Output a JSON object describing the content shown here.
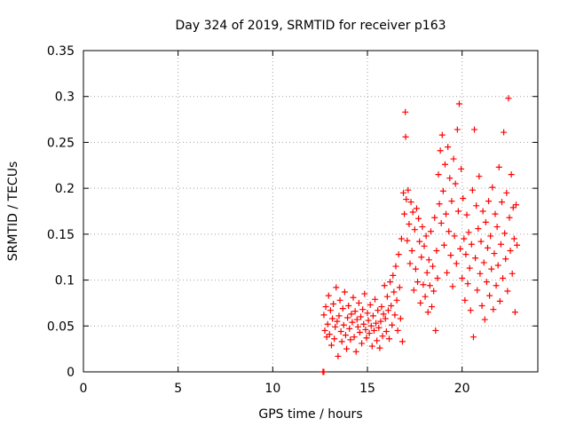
{
  "chart_data": {
    "type": "scatter",
    "title": "Day 324 of 2019, SRMTID for receiver p163",
    "xlabel": "GPS time / hours",
    "ylabel": "SRMTID / TECUs",
    "xlim": [
      0,
      24
    ],
    "ylim": [
      0,
      0.35
    ],
    "xticks": [
      0,
      5,
      10,
      15,
      20
    ],
    "yticks": [
      0,
      0.05,
      0.1,
      0.15,
      0.2,
      0.25,
      0.3,
      0.35
    ],
    "xtick_labels": [
      "0",
      "5",
      "10",
      "15",
      "20"
    ],
    "ytick_labels": [
      "0",
      "0.05",
      "0.1",
      "0.15",
      "0.2",
      "0.25",
      "0.3",
      "0.35"
    ],
    "grid": true,
    "marker": "+",
    "series_color": "#ff0000",
    "series": [
      {
        "name": "SRMTID",
        "points": [
          [
            12.65,
            0.0
          ],
          [
            12.7,
            0.0
          ],
          [
            12.7,
            0.062
          ],
          [
            12.75,
            0.045
          ],
          [
            12.8,
            0.071
          ],
          [
            12.85,
            0.038
          ],
          [
            12.9,
            0.052
          ],
          [
            12.95,
            0.083
          ],
          [
            13.0,
            0.041
          ],
          [
            13.05,
            0.067
          ],
          [
            13.1,
            0.029
          ],
          [
            13.15,
            0.058
          ],
          [
            13.2,
            0.074
          ],
          [
            13.25,
            0.036
          ],
          [
            13.3,
            0.049
          ],
          [
            13.35,
            0.092
          ],
          [
            13.4,
            0.055
          ],
          [
            13.45,
            0.017
          ],
          [
            13.5,
            0.061
          ],
          [
            13.55,
            0.078
          ],
          [
            13.6,
            0.044
          ],
          [
            13.65,
            0.033
          ],
          [
            13.7,
            0.069
          ],
          [
            13.75,
            0.051
          ],
          [
            13.8,
            0.087
          ],
          [
            13.85,
            0.04
          ],
          [
            13.9,
            0.025
          ],
          [
            13.95,
            0.059
          ],
          [
            14.0,
            0.072
          ],
          [
            14.05,
            0.047
          ],
          [
            14.1,
            0.035
          ],
          [
            14.15,
            0.063
          ],
          [
            14.2,
            0.054
          ],
          [
            14.25,
            0.081
          ],
          [
            14.3,
            0.038
          ],
          [
            14.35,
            0.066
          ],
          [
            14.4,
            0.022
          ],
          [
            14.45,
            0.057
          ],
          [
            14.5,
            0.049
          ],
          [
            14.55,
            0.075
          ],
          [
            14.6,
            0.043
          ],
          [
            14.65,
            0.06
          ],
          [
            14.7,
            0.031
          ],
          [
            14.75,
            0.068
          ],
          [
            14.8,
            0.052
          ],
          [
            14.85,
            0.085
          ],
          [
            14.9,
            0.046
          ],
          [
            14.95,
            0.037
          ],
          [
            15.0,
            0.064
          ],
          [
            15.05,
            0.056
          ],
          [
            15.1,
            0.042
          ],
          [
            15.15,
            0.073
          ],
          [
            15.2,
            0.05
          ],
          [
            15.25,
            0.028
          ],
          [
            15.3,
            0.061
          ],
          [
            15.35,
            0.045
          ],
          [
            15.4,
            0.079
          ],
          [
            15.45,
            0.053
          ],
          [
            15.5,
            0.034
          ],
          [
            15.55,
            0.067
          ],
          [
            15.6,
            0.048
          ],
          [
            15.65,
            0.026
          ],
          [
            15.7,
            0.055
          ],
          [
            15.75,
            0.071
          ],
          [
            15.8,
            0.039
          ],
          [
            15.85,
            0.063
          ],
          [
            15.9,
            0.094
          ],
          [
            15.95,
            0.058
          ],
          [
            16.0,
            0.044
          ],
          [
            16.05,
            0.082
          ],
          [
            16.1,
            0.067
          ],
          [
            16.15,
            0.036
          ],
          [
            16.2,
            0.098
          ],
          [
            16.25,
            0.072
          ],
          [
            16.3,
            0.051
          ],
          [
            16.35,
            0.105
          ],
          [
            16.4,
            0.087
          ],
          [
            16.45,
            0.062
          ],
          [
            16.5,
            0.115
          ],
          [
            16.55,
            0.078
          ],
          [
            16.6,
            0.045
          ],
          [
            16.65,
            0.128
          ],
          [
            16.7,
            0.092
          ],
          [
            16.75,
            0.058
          ],
          [
            16.8,
            0.145
          ],
          [
            16.85,
            0.033
          ],
          [
            16.9,
            0.195
          ],
          [
            16.95,
            0.172
          ],
          [
            17.0,
            0.283
          ],
          [
            17.02,
            0.256
          ],
          [
            17.05,
            0.188
          ],
          [
            17.1,
            0.143
          ],
          [
            17.15,
            0.198
          ],
          [
            17.2,
            0.161
          ],
          [
            17.25,
            0.118
          ],
          [
            17.3,
            0.185
          ],
          [
            17.35,
            0.132
          ],
          [
            17.4,
            0.174
          ],
          [
            17.45,
            0.089
          ],
          [
            17.5,
            0.155
          ],
          [
            17.55,
            0.112
          ],
          [
            17.6,
            0.178
          ],
          [
            17.65,
            0.098
          ],
          [
            17.7,
            0.167
          ],
          [
            17.75,
            0.142
          ],
          [
            17.8,
            0.075
          ],
          [
            17.85,
            0.125
          ],
          [
            17.9,
            0.158
          ],
          [
            17.95,
            0.095
          ],
          [
            18.0,
            0.137
          ],
          [
            18.05,
            0.082
          ],
          [
            18.1,
            0.148
          ],
          [
            18.15,
            0.108
          ],
          [
            18.2,
            0.065
          ],
          [
            18.25,
            0.122
          ],
          [
            18.3,
            0.094
          ],
          [
            18.35,
            0.153
          ],
          [
            18.4,
            0.071
          ],
          [
            18.45,
            0.115
          ],
          [
            18.5,
            0.088
          ],
          [
            18.55,
            0.168
          ],
          [
            18.6,
            0.045
          ],
          [
            18.65,
            0.132
          ],
          [
            18.7,
            0.102
          ],
          [
            18.75,
            0.215
          ],
          [
            18.8,
            0.183
          ],
          [
            18.85,
            0.241
          ],
          [
            18.9,
            0.162
          ],
          [
            18.95,
            0.258
          ],
          [
            19.0,
            0.197
          ],
          [
            19.05,
            0.138
          ],
          [
            19.1,
            0.226
          ],
          [
            19.15,
            0.172
          ],
          [
            19.2,
            0.108
          ],
          [
            19.25,
            0.245
          ],
          [
            19.3,
            0.153
          ],
          [
            19.35,
            0.211
          ],
          [
            19.4,
            0.127
          ],
          [
            19.45,
            0.186
          ],
          [
            19.5,
            0.093
          ],
          [
            19.55,
            0.232
          ],
          [
            19.6,
            0.148
          ],
          [
            19.65,
            0.205
          ],
          [
            19.7,
            0.118
          ],
          [
            19.75,
            0.264
          ],
          [
            19.8,
            0.175
          ],
          [
            19.85,
            0.292
          ],
          [
            19.9,
            0.134
          ],
          [
            19.95,
            0.221
          ],
          [
            20.0,
            0.102
          ],
          [
            20.05,
            0.189
          ],
          [
            20.1,
            0.145
          ],
          [
            20.15,
            0.078
          ],
          [
            20.2,
            0.128
          ],
          [
            20.25,
            0.171
          ],
          [
            20.3,
            0.096
          ],
          [
            20.35,
            0.152
          ],
          [
            20.4,
            0.113
          ],
          [
            20.45,
            0.067
          ],
          [
            20.5,
            0.139
          ],
          [
            20.55,
            0.198
          ],
          [
            20.6,
            0.038
          ],
          [
            20.65,
            0.264
          ],
          [
            20.7,
            0.124
          ],
          [
            20.75,
            0.181
          ],
          [
            20.8,
            0.089
          ],
          [
            20.85,
            0.156
          ],
          [
            20.9,
            0.213
          ],
          [
            20.95,
            0.107
          ],
          [
            21.0,
            0.142
          ],
          [
            21.05,
            0.072
          ],
          [
            21.1,
            0.175
          ],
          [
            21.15,
            0.119
          ],
          [
            21.2,
            0.057
          ],
          [
            21.25,
            0.163
          ],
          [
            21.3,
            0.098
          ],
          [
            21.35,
            0.135
          ],
          [
            21.4,
            0.186
          ],
          [
            21.45,
            0.083
          ],
          [
            21.5,
            0.148
          ],
          [
            21.55,
            0.112
          ],
          [
            21.6,
            0.201
          ],
          [
            21.65,
            0.068
          ],
          [
            21.7,
            0.129
          ],
          [
            21.75,
            0.172
          ],
          [
            21.8,
            0.094
          ],
          [
            21.85,
            0.158
          ],
          [
            21.9,
            0.116
          ],
          [
            21.95,
            0.223
          ],
          [
            22.0,
            0.077
          ],
          [
            22.05,
            0.139
          ],
          [
            22.1,
            0.185
          ],
          [
            22.15,
            0.102
          ],
          [
            22.2,
            0.261
          ],
          [
            22.25,
            0.151
          ],
          [
            22.3,
            0.123
          ],
          [
            22.35,
            0.195
          ],
          [
            22.4,
            0.088
          ],
          [
            22.45,
            0.298
          ],
          [
            22.5,
            0.168
          ],
          [
            22.55,
            0.132
          ],
          [
            22.6,
            0.215
          ],
          [
            22.65,
            0.107
          ],
          [
            22.7,
            0.179
          ],
          [
            22.75,
            0.145
          ],
          [
            22.8,
            0.065
          ],
          [
            22.85,
            0.182
          ],
          [
            22.9,
            0.138
          ]
        ]
      }
    ]
  }
}
